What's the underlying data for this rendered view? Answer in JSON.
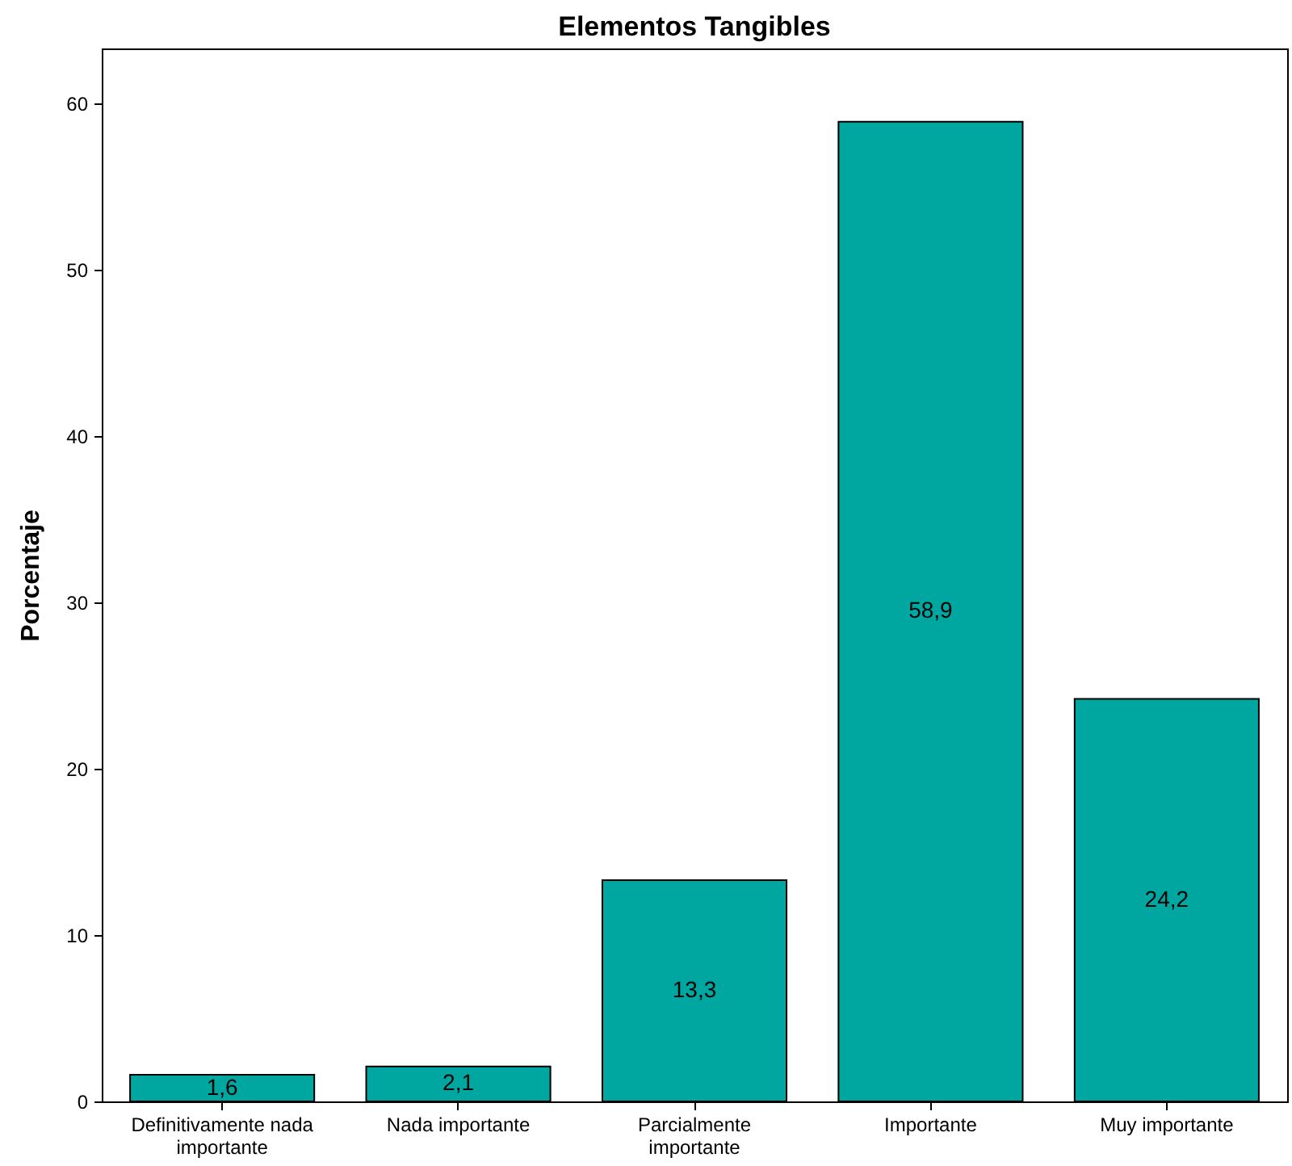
{
  "chart_data": {
    "type": "bar",
    "title": "Elementos Tangibles",
    "ylabel": "Porcentaje",
    "categories": [
      "Definitivamente nada importante",
      "Nada importante",
      "Parcialmente importante",
      "Importante",
      "Muy importante"
    ],
    "values": [
      1.6,
      2.1,
      13.3,
      58.9,
      24.2
    ],
    "value_labels": [
      "1,6",
      "2,1",
      "13,3",
      "58,9",
      "24,2"
    ],
    "color": "#00a6a0",
    "ylim": [
      0,
      63.3
    ],
    "yticks": [
      0,
      10,
      20,
      30,
      40,
      50,
      60
    ],
    "grid": false
  }
}
